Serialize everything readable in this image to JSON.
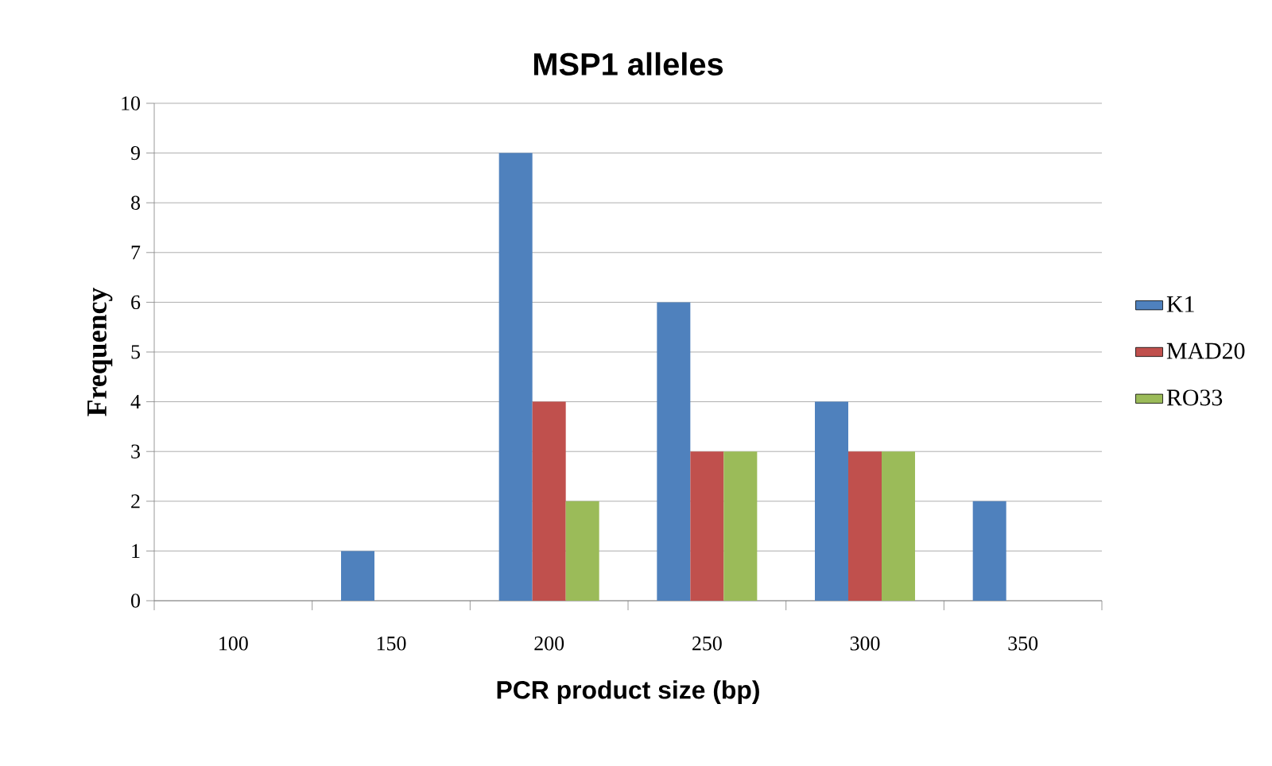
{
  "chart_data": {
    "type": "bar",
    "title": "MSP1 alleles",
    "xlabel": "PCR product size (bp)",
    "ylabel": "Frequency",
    "categories": [
      "100",
      "150",
      "200",
      "250",
      "300",
      "350"
    ],
    "series": [
      {
        "name": "K1",
        "color": "#4f81bd",
        "values": [
          0,
          1,
          9,
          6,
          4,
          2
        ]
      },
      {
        "name": "MAD20",
        "color": "#c0504d",
        "values": [
          0,
          0,
          4,
          3,
          3,
          0
        ]
      },
      {
        "name": "RO33",
        "color": "#9bbb59",
        "values": [
          0,
          0,
          2,
          3,
          3,
          0
        ]
      }
    ],
    "ylim": [
      0,
      10
    ],
    "yticks": [
      0,
      1,
      2,
      3,
      4,
      5,
      6,
      7,
      8,
      9,
      10
    ],
    "grid": "y",
    "legend": "right"
  }
}
